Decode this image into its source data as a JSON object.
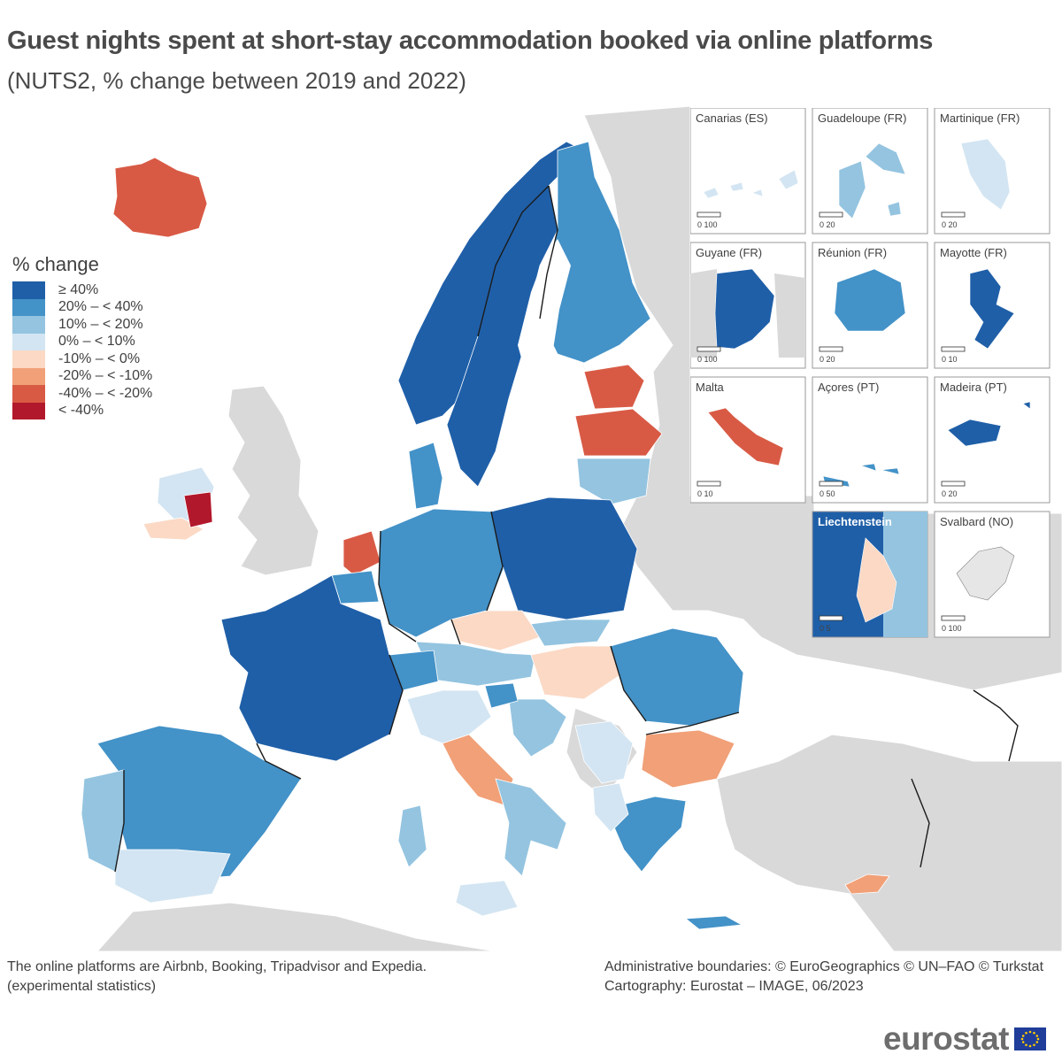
{
  "title": "Guest nights spent at short-stay accommodation booked via online platforms",
  "subtitle": "(NUTS2, % change between 2019 and 2022)",
  "legend": {
    "title": "% change",
    "classes": [
      {
        "label": "≥ 40%",
        "color": "#1f5fa8"
      },
      {
        "label": "20% – < 40%",
        "color": "#4392c8"
      },
      {
        "label": "10% – < 20%",
        "color": "#94c4e0"
      },
      {
        "label": "0% – < 10%",
        "color": "#d3e5f2"
      },
      {
        "label": "-10% – < 0%",
        "color": "#fbd9c5"
      },
      {
        "label": "-20% – < -10%",
        "color": "#f1a078"
      },
      {
        "label": "-40% – < -20%",
        "color": "#d85a45"
      },
      {
        "label": "< -40%",
        "color": "#b2182b"
      }
    ]
  },
  "colors": {
    "no_data": "#d9d9d9",
    "sea": "#ffffff",
    "border": "#1a1a1a"
  },
  "insets": [
    {
      "name": "Canarias (ES)",
      "scale": "0 100",
      "class": 3
    },
    {
      "name": "Guadeloupe (FR)",
      "scale": "0 20",
      "class": 2
    },
    {
      "name": "Martinique (FR)",
      "scale": "0 20",
      "class": 3
    },
    {
      "name": "Guyane (FR)",
      "scale": "0 100",
      "class": 0
    },
    {
      "name": "Réunion (FR)",
      "scale": "0 20",
      "class": 1
    },
    {
      "name": "Mayotte (FR)",
      "scale": "0 10",
      "class": 0
    },
    {
      "name": "Malta",
      "scale": "0 10",
      "class": 6
    },
    {
      "name": "Açores (PT)",
      "scale": "0 50",
      "class": 1
    },
    {
      "name": "Madeira (PT)",
      "scale": "0 20",
      "class": 0
    },
    {
      "name": "Liechtenstein",
      "scale": "0 5",
      "class": 4
    },
    {
      "name": "Svalbard (NO)",
      "scale": "0 100",
      "class": null
    }
  ],
  "regions": [
    {
      "name": "Iceland",
      "class": 6
    },
    {
      "name": "Norway",
      "class": 0
    },
    {
      "name": "Sweden",
      "class": 0
    },
    {
      "name": "Finland",
      "class": 1
    },
    {
      "name": "Estonia",
      "class": 6
    },
    {
      "name": "Latvia",
      "class": 6
    },
    {
      "name": "Lithuania",
      "class": 2
    },
    {
      "name": "Denmark",
      "class": 1
    },
    {
      "name": "Ireland",
      "class": 3
    },
    {
      "name": "Ireland south",
      "class": 4
    },
    {
      "name": "Ireland midlands",
      "class": 7
    },
    {
      "name": "Netherlands",
      "class": 6
    },
    {
      "name": "Belgium",
      "class": 1
    },
    {
      "name": "Germany",
      "class": 1
    },
    {
      "name": "Poland",
      "class": 0
    },
    {
      "name": "Czechia",
      "class": 4
    },
    {
      "name": "Slovakia",
      "class": 2
    },
    {
      "name": "Austria",
      "class": 2
    },
    {
      "name": "Switzerland",
      "class": 1
    },
    {
      "name": "France",
      "class": 0
    },
    {
      "name": "Spain",
      "class": 1
    },
    {
      "name": "Spain south",
      "class": 3
    },
    {
      "name": "Portugal",
      "class": 2
    },
    {
      "name": "Italy north",
      "class": 3
    },
    {
      "name": "Italy centre",
      "class": 5
    },
    {
      "name": "Italy south",
      "class": 2
    },
    {
      "name": "Sicily",
      "class": 3
    },
    {
      "name": "Sardinia",
      "class": 2
    },
    {
      "name": "Hungary",
      "class": 4
    },
    {
      "name": "Romania",
      "class": 1
    },
    {
      "name": "Bulgaria",
      "class": 5
    },
    {
      "name": "Croatia",
      "class": 2
    },
    {
      "name": "Slovenia",
      "class": 1
    },
    {
      "name": "Greece",
      "class": 1
    },
    {
      "name": "Crete",
      "class": 1
    },
    {
      "name": "Cyprus",
      "class": 5
    },
    {
      "name": "Serbia region",
      "class": 3
    },
    {
      "name": "Albania region",
      "class": 3
    }
  ],
  "footnote": {
    "line1": "The online platforms are Airbnb, Booking, Tripadvisor and Expedia.",
    "line2": "(experimental statistics)"
  },
  "credits": {
    "line1": "Administrative boundaries: © EuroGeographics © UN–FAO © Turkstat",
    "line2": "Cartography: Eurostat – IMAGE, 06/2023"
  },
  "brand": "eurostat"
}
